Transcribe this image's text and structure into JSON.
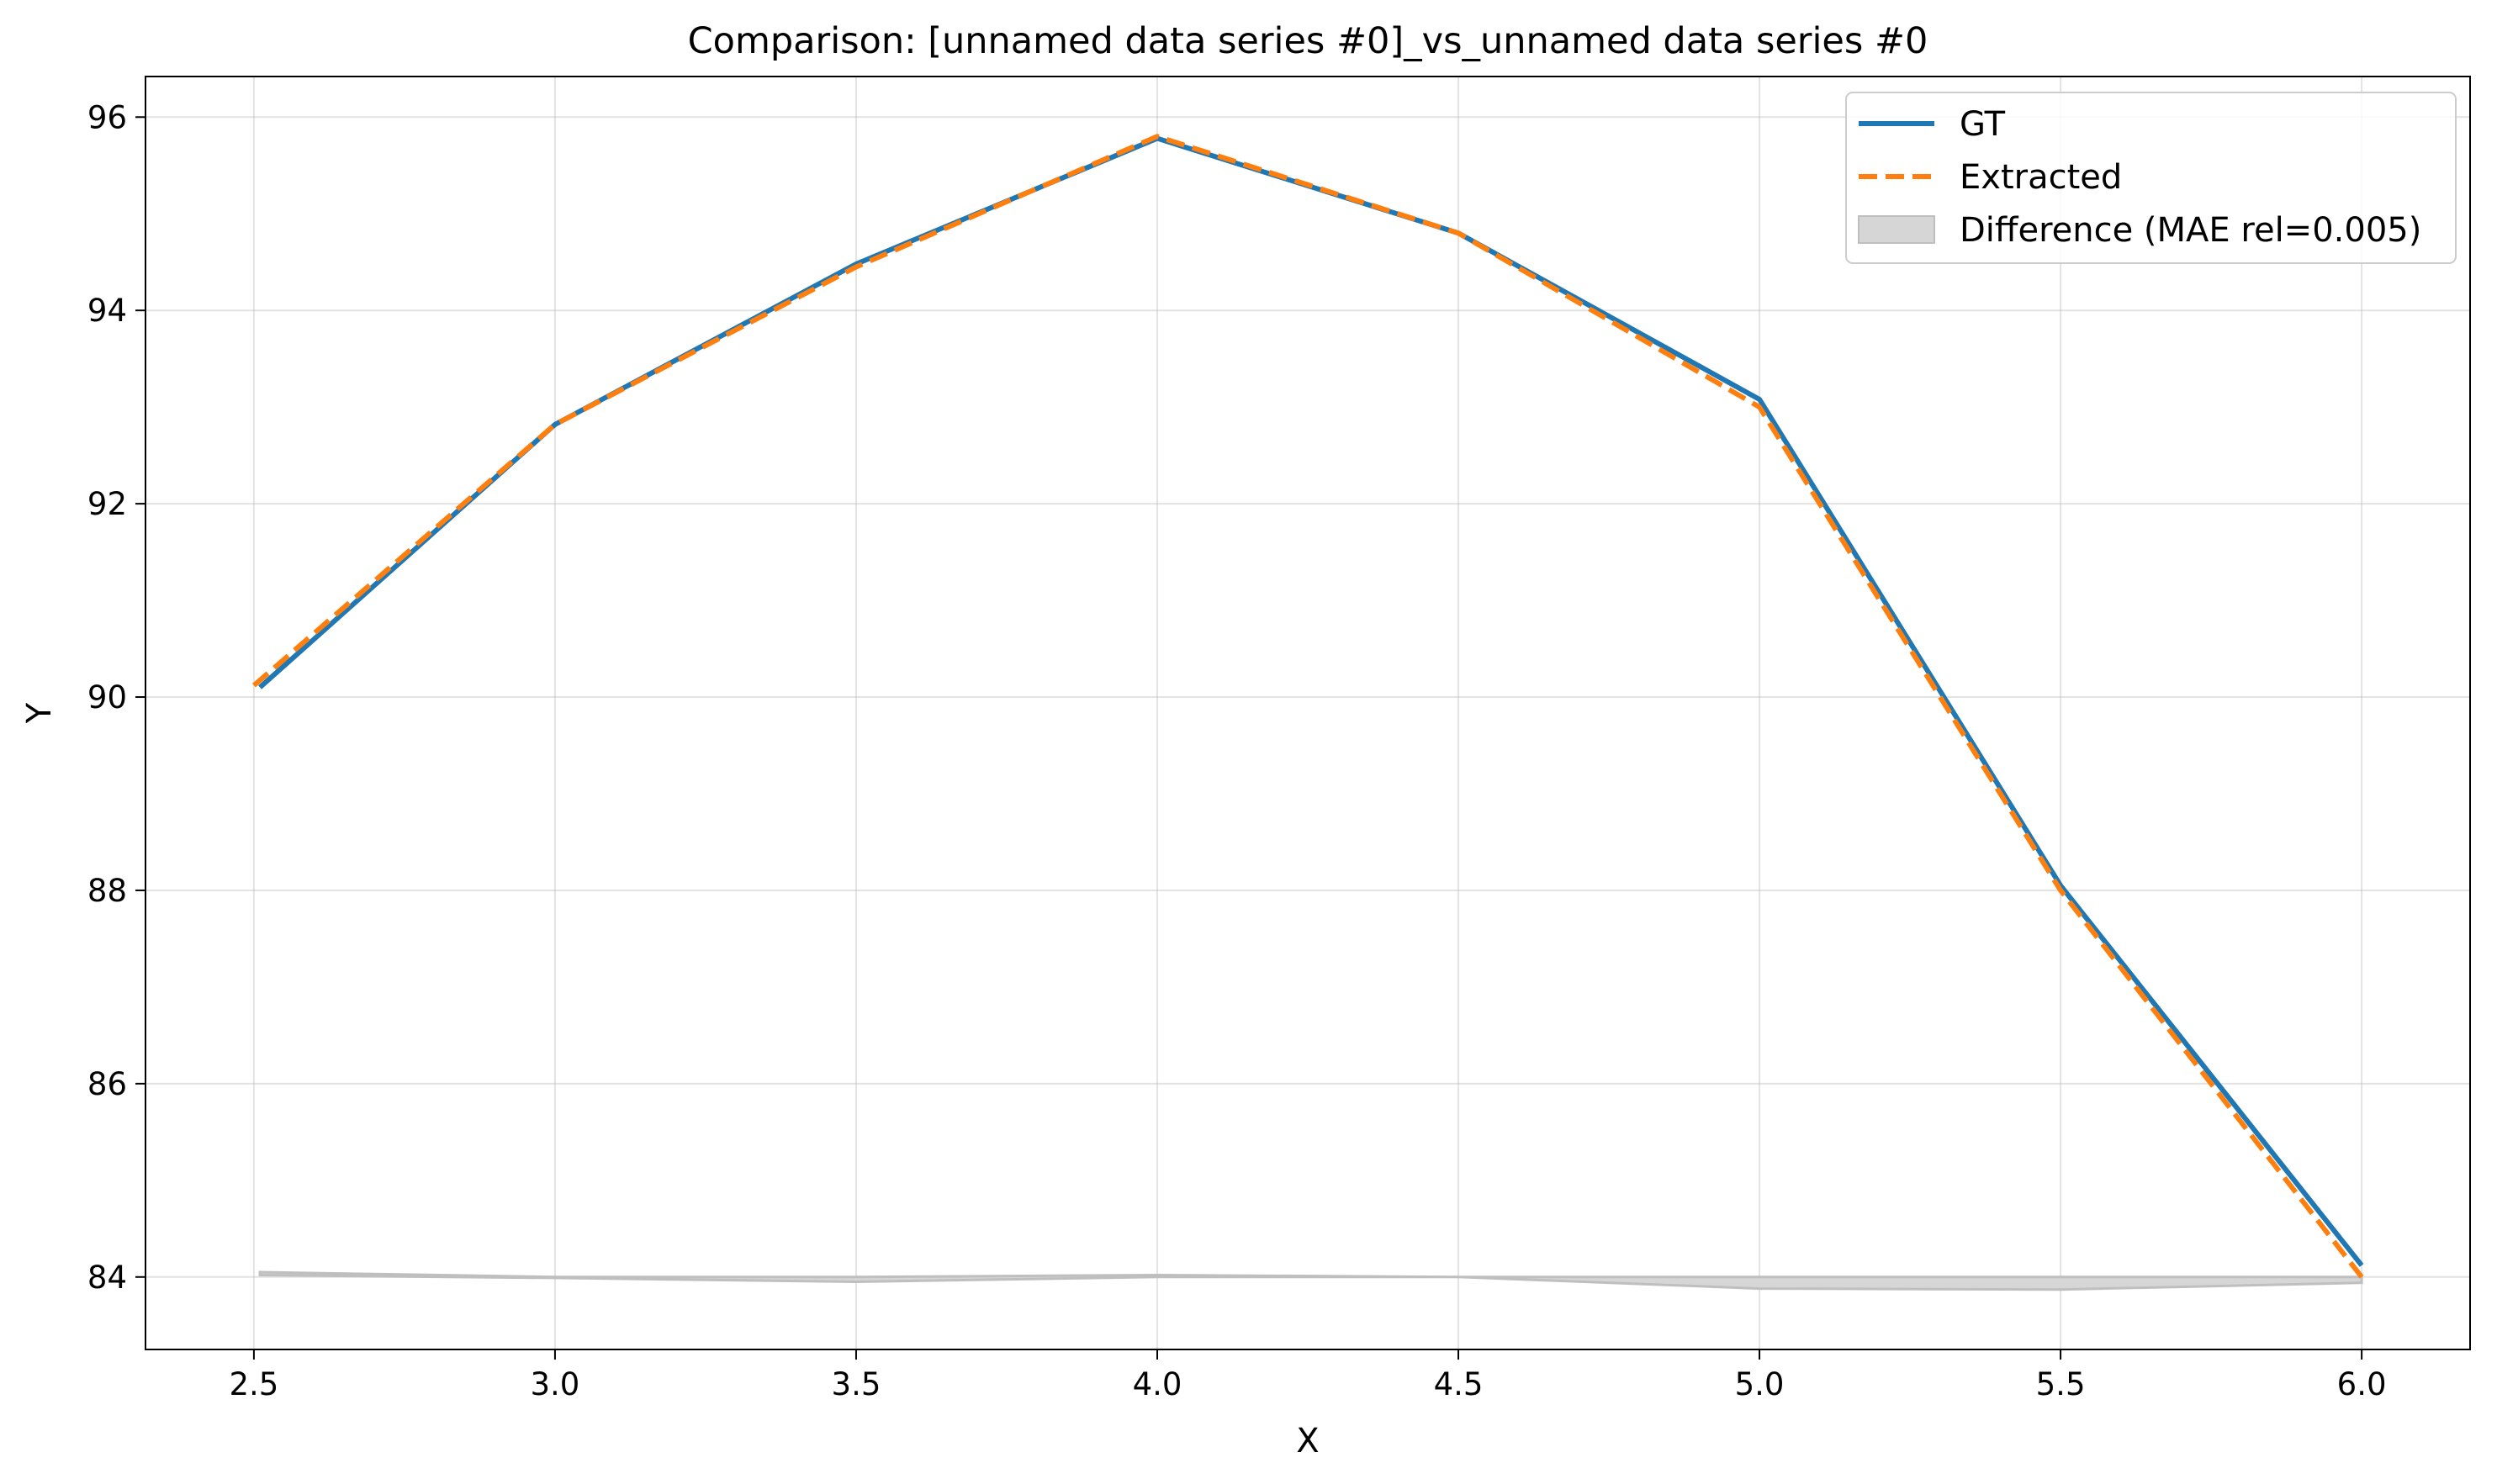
{
  "chart_data": {
    "type": "line",
    "title": "Comparison: [unnamed data series #0]_vs_unnamed data series #0",
    "xlabel": "X",
    "ylabel": "Y",
    "xlim": [
      2.32,
      6.18
    ],
    "ylim": [
      83.25,
      96.42
    ],
    "xticks": [
      2.5,
      3.0,
      3.5,
      4.0,
      4.5,
      5.0,
      5.5,
      6.0
    ],
    "xtick_labels": [
      "2.5",
      "3.0",
      "3.5",
      "4.0",
      "4.5",
      "5.0",
      "5.5",
      "6.0"
    ],
    "yticks": [
      84,
      86,
      88,
      90,
      92,
      94,
      96
    ],
    "ytick_labels": [
      "84",
      "86",
      "88",
      "90",
      "92",
      "94",
      "96"
    ],
    "grid": true,
    "legend_position": "top-right",
    "series": [
      {
        "name": "GT",
        "color": "#1f77b4",
        "style": "solid",
        "x": [
          2.51,
          3.0,
          3.5,
          4.0,
          4.5,
          5.0,
          5.5,
          6.0
        ],
        "y": [
          90.1,
          92.82,
          94.48,
          95.78,
          94.8,
          93.08,
          88.05,
          84.12
        ]
      },
      {
        "name": "Extracted",
        "color": "#ff7f0e",
        "style": "dashed",
        "x": [
          2.5,
          3.0,
          3.5,
          4.0,
          4.5,
          5.0,
          5.5,
          6.0
        ],
        "y": [
          90.12,
          92.82,
          94.45,
          95.8,
          94.8,
          93.0,
          88.0,
          84.0
        ]
      }
    ],
    "difference": {
      "name": "Difference (MAE rel=0.005)",
      "color": "#bfbfbf",
      "baseline": 84,
      "x": [
        2.51,
        3.0,
        3.5,
        4.0,
        4.5,
        5.0,
        5.5,
        6.0
      ],
      "upper": [
        84.05,
        84.0,
        84.0,
        84.02,
        84.0,
        84.0,
        84.0,
        84.0
      ],
      "lower": [
        84.02,
        83.99,
        83.95,
        84.0,
        84.0,
        83.88,
        83.87,
        83.94
      ]
    }
  }
}
